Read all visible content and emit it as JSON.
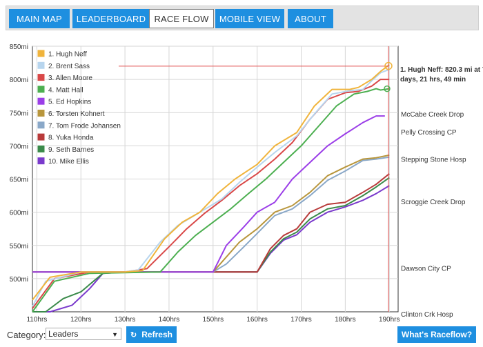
{
  "nav": {
    "tabs": [
      {
        "label": "MAIN MAP",
        "active": false
      },
      {
        "label": "LEADERBOARD",
        "active": false
      },
      {
        "label": "RACE FLOW",
        "active": true
      },
      {
        "label": "MOBILE VIEW",
        "active": false
      },
      {
        "label": "ABOUT",
        "active": false
      }
    ]
  },
  "controls": {
    "category_label": "Category:",
    "category_value": "Leaders",
    "refresh_label": "Refresh",
    "raceflow_label": "What's Raceflow?"
  },
  "colors": {
    "accent": "#1e8fe0",
    "cursor_line": "#e05050"
  },
  "chart_data": {
    "type": "line",
    "xlim": [
      109,
      192
    ],
    "ylim": [
      450,
      850
    ],
    "y_ticks": [
      500,
      550,
      600,
      650,
      700,
      750,
      800,
      850
    ],
    "y_tick_labels": [
      "500mi",
      "550mi",
      "600mi",
      "650mi",
      "700mi",
      "750mi",
      "800mi",
      "850mi"
    ],
    "x_ticks": [
      110,
      120,
      130,
      140,
      150,
      160,
      170,
      180,
      190
    ],
    "x_tick_labels": [
      "110hrs",
      "120hrs",
      "130hrs",
      "140hrs",
      "150hrs",
      "160hrs",
      "170hrs",
      "180hrs",
      "190hrs"
    ],
    "grid": true,
    "legend_position": "top-left",
    "checkpoints": [
      {
        "name": "McCabe Creek Drop",
        "mile": 748
      },
      {
        "name": "Pelly Crossing CP",
        "mile": 721
      },
      {
        "name": "Stepping Stone Hosp",
        "mile": 680
      },
      {
        "name": "Scroggie Creek Drop",
        "mile": 616
      },
      {
        "name": "Dawson City CP",
        "mile": 516
      },
      {
        "name": "Clinton Crk Hosp",
        "mile": 447
      }
    ],
    "cursor": {
      "x": 189.8,
      "y": 820.3
    },
    "tooltip_lines": [
      "1. Hugh Neff: 820.3 mi at 7",
      "days, 21 hrs, 49 min"
    ],
    "series": [
      {
        "name": "1. Hugh Neff",
        "color": "#f0b43c",
        "x": [
          109,
          113,
          120,
          130,
          134,
          139,
          143,
          147,
          151,
          155,
          160,
          164,
          169,
          173,
          177,
          181,
          183,
          186,
          188,
          190
        ],
        "y": [
          468,
          502,
          510,
          510,
          512,
          560,
          585,
          600,
          628,
          650,
          672,
          700,
          720,
          760,
          785,
          785,
          788,
          800,
          812,
          822
        ]
      },
      {
        "name": "2. Brent Sass",
        "color": "#b7d5ee",
        "x": [
          109,
          112,
          120,
          130,
          133,
          138,
          142,
          147,
          152,
          156,
          160,
          164,
          169,
          173,
          177,
          181,
          184,
          186,
          188,
          190
        ],
        "y": [
          458,
          496,
          510,
          510,
          513,
          555,
          580,
          600,
          620,
          645,
          668,
          690,
          715,
          748,
          778,
          783,
          785,
          798,
          810,
          815
        ]
      },
      {
        "name": "3. Allen Moore",
        "color": "#d94848",
        "x": [
          109,
          114,
          122,
          130,
          135,
          140,
          144,
          148,
          152,
          156,
          160,
          164,
          168,
          172,
          176,
          180,
          183,
          186,
          188,
          190
        ],
        "y": [
          455,
          500,
          510,
          510,
          515,
          548,
          575,
          598,
          618,
          640,
          658,
          680,
          705,
          740,
          770,
          780,
          782,
          790,
          800,
          800
        ]
      },
      {
        "name": "4. Matt Hall",
        "color": "#4caf50",
        "x": [
          109,
          114,
          122,
          130,
          138,
          142,
          146,
          150,
          154,
          158,
          162,
          166,
          170,
          174,
          178,
          182,
          185,
          187,
          188,
          190
        ],
        "y": [
          450,
          496,
          508,
          509,
          510,
          540,
          565,
          585,
          605,
          628,
          650,
          675,
          700,
          730,
          760,
          778,
          782,
          786,
          784,
          786
        ]
      },
      {
        "name": "5. Ed Hopkins",
        "color": "#9b3ee8",
        "x": [
          109,
          112,
          130,
          150,
          153,
          157,
          160,
          164,
          168,
          172,
          176,
          180,
          184,
          187,
          189
        ],
        "y": [
          510,
          510,
          510,
          510,
          550,
          578,
          600,
          615,
          650,
          675,
          700,
          718,
          735,
          745,
          745
        ]
      },
      {
        "name": "6. Torsten Kohnert",
        "color": "#b8963c",
        "x": [
          109,
          113,
          120,
          130,
          150,
          152,
          156,
          160,
          164,
          168,
          172,
          176,
          180,
          184,
          187,
          190
        ],
        "y": [
          510,
          510,
          510,
          510,
          510,
          525,
          555,
          575,
          600,
          610,
          630,
          655,
          668,
          680,
          682,
          686
        ]
      },
      {
        "name": "7. Tom Frode Johansen",
        "color": "#8aa8c8",
        "x": [
          109,
          113,
          120,
          130,
          150,
          153,
          157,
          160,
          164,
          168,
          172,
          176,
          180,
          184,
          187,
          190
        ],
        "y": [
          510,
          510,
          510,
          510,
          510,
          522,
          548,
          568,
          595,
          605,
          625,
          648,
          662,
          678,
          680,
          683
        ]
      },
      {
        "name": "8. Yuka Honda",
        "color": "#b83a3a",
        "x": [
          109,
          113,
          120,
          130,
          150,
          160,
          163,
          166,
          169,
          172,
          176,
          180,
          184,
          187,
          190
        ],
        "y": [
          510,
          510,
          510,
          510,
          510,
          510,
          545,
          565,
          575,
          600,
          612,
          615,
          630,
          642,
          658
        ]
      },
      {
        "name": "9. Seth Barnes",
        "color": "#3a8a4a",
        "x": [
          109,
          112,
          116,
          120,
          125,
          130,
          150,
          160,
          163,
          166,
          169,
          172,
          176,
          180,
          184,
          187,
          190
        ],
        "y": [
          450,
          450,
          470,
          480,
          508,
          510,
          510,
          510,
          540,
          560,
          570,
          590,
          605,
          610,
          625,
          638,
          652
        ]
      },
      {
        "name": "10. Mike Ellis",
        "color": "#7a3acc",
        "x": [
          109,
          113,
          118,
          122,
          125,
          130,
          150,
          160,
          163,
          166,
          169,
          172,
          176,
          180,
          184,
          187,
          190
        ],
        "y": [
          450,
          450,
          460,
          485,
          508,
          510,
          510,
          510,
          538,
          558,
          566,
          585,
          600,
          608,
          618,
          628,
          640
        ]
      }
    ]
  }
}
